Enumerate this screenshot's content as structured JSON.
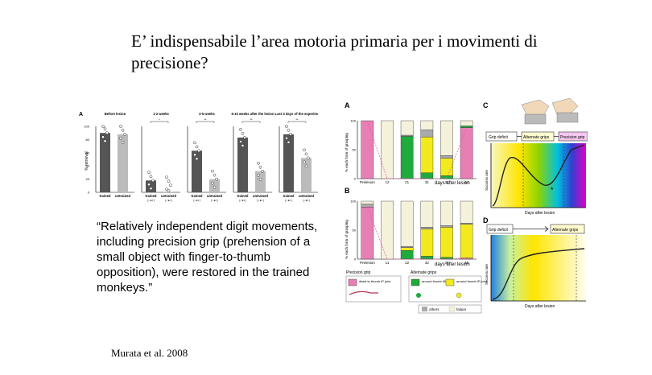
{
  "slide": {
    "title": "E’ indispensabile l’area motoria primaria per i movimenti di precisione?",
    "quote": "“Relatively independent digit movements, including precision grip (prehension of a small object with finger-to-thumb opposition), were restored in the trained monkeys.”",
    "citation": "Murata et al. 2008"
  },
  "left_figure": {
    "panel_label": "A",
    "ylabel": "% retrieval",
    "yticks": [
      "100",
      "80",
      "60",
      "40",
      "20",
      "0"
    ],
    "chart_data": {
      "type": "bar",
      "ylim": [
        0,
        100
      ],
      "groups": [
        {
          "title": "Before lesion",
          "bars": [
            {
              "label": "trained",
              "sub": "",
              "value": 90,
              "color": "#555555",
              "sig": ""
            },
            {
              "label": "untrained",
              "sub": "",
              "value": 88,
              "color": "#bbbbbb",
              "sig": ""
            }
          ]
        },
        {
          "title": "1-2 weeks",
          "bars": [
            {
              "label": "trained",
              "sub": "(○●◐)",
              "value": 18,
              "color": "#555555",
              "sig": "*"
            },
            {
              "label": "untrained",
              "sub": "(○●◐)",
              "value": 1,
              "color": "#bbbbbb",
              "sig": ""
            }
          ]
        },
        {
          "title": "3-5 weeks",
          "bars": [
            {
              "label": "trained",
              "sub": "(○●◐)",
              "value": 63,
              "color": "#555555",
              "sig": "**"
            },
            {
              "label": "untrained",
              "sub": "(○●◐)",
              "value": 20,
              "color": "#bbbbbb",
              "sig": ""
            }
          ]
        },
        {
          "title": "6-10 weeks after the lesion",
          "bars": [
            {
              "label": "trained",
              "sub": "(○●◐)",
              "value": 83,
              "color": "#555555",
              "sig": "**"
            },
            {
              "label": "untrained",
              "sub": "(○●◐)",
              "value": 32,
              "color": "#bbbbbb",
              "sig": ""
            }
          ]
        },
        {
          "title": "Last 3 days of the experiment",
          "bars": [
            {
              "label": "trained",
              "sub": "(○●◐)",
              "value": 88,
              "color": "#555555",
              "sig": "**"
            },
            {
              "label": "untrained",
              "sub": "(○●◐)",
              "value": 52,
              "color": "#bbbbbb",
              "sig": ""
            }
          ]
        }
      ]
    }
  },
  "right_figure": {
    "panel_a_label": "A",
    "panel_b_label": "B",
    "panel_c_label": "C",
    "panel_d_label": "D",
    "ylabel": "% each form of grasping",
    "xlabel": "days after lesion",
    "yticks": [
      "100",
      "50",
      "0"
    ],
    "chart_data": [
      {
        "type": "bar",
        "panel": "A",
        "stacked": true,
        "ylim": [
          0,
          100
        ],
        "categories": [
          "Prelesion",
          "12",
          "21",
          "31",
          "34",
          "44"
        ],
        "series": [
          {
            "color": "#e87fb4",
            "values": [
              100,
              0,
              0,
              0,
              0,
              88
            ]
          },
          {
            "color": "#1faa3c",
            "values": [
              0,
              0,
              73,
              10,
              5,
              3
            ]
          },
          {
            "color": "#f2ea1c",
            "values": [
              0,
              0,
              0,
              62,
              30,
              0
            ]
          },
          {
            "color": "#aaaaaa",
            "values": [
              0,
              0,
              2,
              12,
              5,
              0
            ]
          },
          {
            "color": "#f5f2dc",
            "values": [
              0,
              100,
              25,
              16,
              60,
              9
            ]
          }
        ]
      },
      {
        "type": "bar",
        "panel": "B",
        "stacked": true,
        "ylim": [
          0,
          100
        ],
        "categories": [
          "Prelesion",
          "11",
          "22",
          "32",
          "38",
          "45"
        ],
        "series": [
          {
            "color": "#e87fb4",
            "values": [
              90,
              0,
              0,
              0,
              0,
              2
            ]
          },
          {
            "color": "#1faa3c",
            "values": [
              0,
              0,
              15,
              5,
              3,
              0
            ]
          },
          {
            "color": "#f2ea1c",
            "values": [
              0,
              0,
              5,
              47,
              52,
              58
            ]
          },
          {
            "color": "#aaaaaa",
            "values": [
              5,
              0,
              2,
              3,
              3,
              2
            ]
          },
          {
            "color": "#f5f2dc",
            "values": [
              5,
              100,
              78,
              45,
              42,
              38
            ]
          }
        ]
      }
    ],
    "legend": {
      "precision_grip_title": "Precision grip",
      "alternate_grips_title": "Alternate grips",
      "distal_label": "distal to thumb IP joint",
      "around_mp_label": "around thumb MP joint",
      "around_ip_label": "around thumb IP joint",
      "others_label": "others",
      "failure_label": "failure",
      "colors": {
        "distal": "#e87fb4",
        "around_mp": "#1faa3c",
        "around_ip": "#f2ea1c",
        "others": "#aaaaaa",
        "failure": "#f5f2dc"
      }
    },
    "panel_c": {
      "box1": "Grip deficit",
      "box2": "Alternate grips",
      "box3": "Precision grip",
      "ylabel": "Success rate",
      "xlabel": "Days after lesion",
      "star": "*"
    },
    "panel_d": {
      "box1": "Grip deficit",
      "box2": "Alternate grips",
      "ylabel": "Success rate",
      "xlabel": "Days after lesion"
    }
  }
}
